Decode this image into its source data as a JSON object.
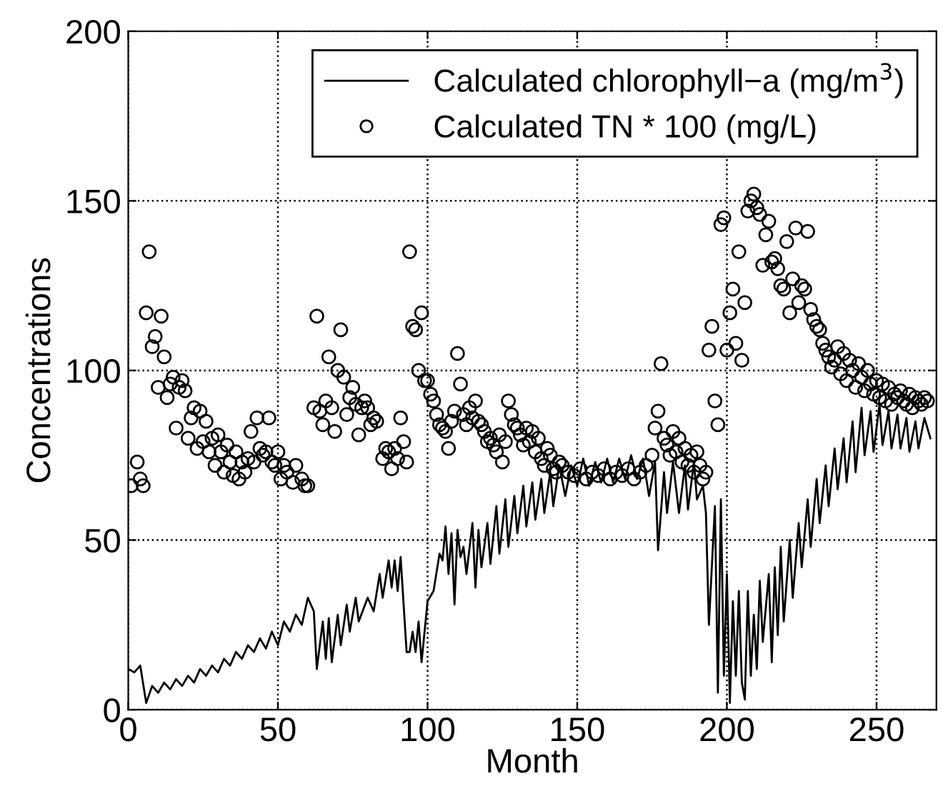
{
  "chart_data": {
    "type": "line",
    "xlabel": "Month",
    "ylabel": "Concentrations",
    "xlim": [
      0,
      270
    ],
    "ylim": [
      0,
      200
    ],
    "xticks": [
      0,
      50,
      100,
      150,
      200,
      250
    ],
    "yticks": [
      0,
      50,
      100,
      150,
      200
    ],
    "grid": true,
    "legend": "top right",
    "series": [
      {
        "name": "Calculated chlorophyll−a (mg/m$^{3}$)",
        "type": "line",
        "color": "#000000",
        "marker": "none",
        "line_style": "solid",
        "x": [
          0,
          2,
          4,
          6,
          8,
          10,
          12,
          14,
          16,
          18,
          20,
          22,
          24,
          26,
          28,
          30,
          32,
          34,
          36,
          38,
          40,
          42,
          44,
          46,
          48,
          50,
          52,
          54,
          56,
          58,
          60,
          62,
          63,
          65,
          66,
          67,
          68,
          70,
          71,
          73,
          74,
          76,
          77,
          80,
          82,
          84,
          85,
          87,
          88,
          89,
          90,
          91,
          93,
          94,
          95,
          96,
          97,
          98,
          100,
          102,
          104,
          105,
          106,
          107,
          108,
          109,
          110,
          111,
          112,
          113,
          115,
          116,
          117,
          118,
          120,
          121,
          123,
          124,
          126,
          127,
          129,
          130,
          132,
          133,
          135,
          136,
          138,
          139,
          141,
          142,
          144,
          146,
          148,
          150,
          152,
          154,
          156,
          158,
          160,
          162,
          164,
          166,
          168,
          170,
          172,
          174,
          176,
          177,
          179,
          180,
          182,
          184,
          186,
          187,
          189,
          190,
          192,
          193,
          194,
          196,
          197,
          198,
          199,
          200,
          201,
          202,
          203,
          204,
          205,
          206,
          207,
          208,
          209,
          210,
          211,
          212,
          214,
          215,
          216,
          217,
          218,
          219,
          221,
          222,
          224,
          225,
          227,
          228,
          230,
          231,
          233,
          234,
          236,
          237,
          239,
          240,
          242,
          243,
          245,
          246,
          248,
          249,
          251,
          252,
          254,
          255,
          257,
          258,
          260,
          261,
          263,
          264,
          266,
          268
        ],
        "values": [
          12,
          11,
          13,
          2,
          7,
          5,
          8,
          6,
          9,
          7,
          10,
          8,
          12,
          10,
          13,
          11,
          15,
          13,
          17,
          15,
          19,
          17,
          21,
          18,
          23,
          19,
          26,
          23,
          28,
          25,
          33,
          29,
          12,
          26,
          15,
          27,
          14,
          28,
          19,
          31,
          23,
          33,
          26,
          33,
          29,
          40,
          33,
          44,
          36,
          44,
          35,
          45,
          17,
          17,
          23,
          17,
          26,
          14,
          32,
          35,
          46,
          44,
          54,
          40,
          52,
          31,
          53,
          45,
          48,
          40,
          55,
          36,
          53,
          42,
          55,
          43,
          60,
          46,
          62,
          48,
          63,
          52,
          66,
          54,
          67,
          56,
          68,
          58,
          70,
          60,
          72,
          63,
          72,
          66,
          74,
          66,
          73,
          67,
          74,
          67,
          74,
          68,
          75,
          68,
          74,
          63,
          73,
          47,
          70,
          58,
          73,
          58,
          72,
          59,
          73,
          62,
          66,
          58,
          25,
          60,
          5,
          62,
          10,
          40,
          2,
          32,
          10,
          35,
          8,
          3,
          35,
          10,
          28,
          12,
          38,
          20,
          40,
          14,
          42,
          22,
          48,
          26,
          50,
          33,
          55,
          42,
          62,
          48,
          68,
          55,
          72,
          60,
          77,
          65,
          80,
          67,
          85,
          70,
          89,
          75,
          88,
          76,
          90,
          78,
          88,
          77,
          87,
          77,
          86,
          76,
          85,
          77,
          86,
          80
        ]
      },
      {
        "name": "Calculated TN * 100 (mg/L)",
        "type": "scatter",
        "color": "#000000",
        "marker": "circle",
        "x": [
          1,
          3,
          4,
          5,
          6,
          7,
          8,
          9,
          10,
          11,
          12,
          13,
          14,
          15,
          16,
          17,
          18,
          19,
          20,
          21,
          22,
          23,
          24,
          25,
          26,
          27,
          28,
          29,
          30,
          31,
          32,
          33,
          34,
          35,
          36,
          37,
          38,
          39,
          40,
          41,
          42,
          43,
          44,
          45,
          46,
          47,
          48,
          49,
          50,
          51,
          52,
          53,
          55,
          56,
          58,
          59,
          60,
          62,
          63,
          64,
          65,
          66,
          67,
          68,
          69,
          70,
          71,
          72,
          73,
          74,
          75,
          76,
          77,
          78,
          79,
          80,
          81,
          82,
          83,
          85,
          86,
          87,
          88,
          89,
          90,
          91,
          92,
          93,
          94,
          95,
          96,
          97,
          98,
          99,
          100,
          101,
          102,
          103,
          104,
          105,
          106,
          107,
          108,
          109,
          110,
          111,
          112,
          113,
          114,
          115,
          116,
          117,
          118,
          119,
          120,
          121,
          122,
          123,
          124,
          125,
          126,
          127,
          128,
          129,
          130,
          131,
          132,
          133,
          134,
          135,
          136,
          137,
          138,
          139,
          140,
          141,
          142,
          143,
          144,
          145,
          147,
          149,
          151,
          153,
          155,
          157,
          159,
          161,
          163,
          165,
          167,
          169,
          171,
          173,
          175,
          176,
          177,
          178,
          179,
          180,
          181,
          182,
          183,
          184,
          185,
          186,
          187,
          188,
          189,
          190,
          191,
          192,
          193,
          194,
          195,
          196,
          197,
          198,
          199,
          200,
          201,
          202,
          203,
          204,
          205,
          206,
          207,
          208,
          209,
          210,
          211,
          212,
          213,
          214,
          215,
          216,
          217,
          218,
          219,
          220,
          221,
          222,
          223,
          224,
          225,
          226,
          227,
          228,
          229,
          230,
          231,
          232,
          233,
          234,
          235,
          236,
          237,
          238,
          239,
          240,
          241,
          242,
          243,
          244,
          245,
          246,
          247,
          248,
          249,
          250,
          251,
          252,
          253,
          254,
          255,
          256,
          257,
          258,
          259,
          260,
          261,
          262,
          263,
          264,
          265,
          266,
          267
        ],
        "values": [
          66,
          73,
          68,
          66,
          117,
          135,
          107,
          110,
          95,
          116,
          104,
          92,
          96,
          98,
          83,
          95,
          97,
          94,
          80,
          86,
          89,
          77,
          88,
          79,
          85,
          76,
          80,
          72,
          81,
          76,
          70,
          78,
          73,
          69,
          76,
          68,
          73,
          70,
          74,
          82,
          73,
          86,
          77,
          75,
          76,
          86,
          73,
          72,
          76,
          68,
          72,
          70,
          67,
          72,
          68,
          66,
          66,
          89,
          116,
          88,
          84,
          91,
          104,
          89,
          82,
          100,
          112,
          98,
          87,
          92,
          95,
          90,
          81,
          89,
          91,
          89,
          84,
          86,
          85,
          74,
          77,
          76,
          71,
          77,
          74,
          86,
          79,
          73,
          135,
          113,
          112,
          100,
          117,
          97,
          97,
          93,
          91,
          87,
          84,
          83,
          82,
          77,
          85,
          88,
          105,
          96,
          87,
          84,
          89,
          86,
          91,
          85,
          84,
          82,
          79,
          80,
          78,
          76,
          81,
          73,
          79,
          91,
          87,
          84,
          83,
          81,
          78,
          83,
          79,
          82,
          76,
          80,
          74,
          72,
          77,
          75,
          71,
          70,
          73,
          72,
          70,
          69,
          71,
          68,
          70,
          69,
          71,
          68,
          70,
          69,
          71,
          68,
          70,
          72,
          75,
          83,
          88,
          102,
          80,
          78,
          75,
          82,
          76,
          80,
          73,
          77,
          72,
          75,
          70,
          76,
          72,
          68,
          70,
          106,
          113,
          91,
          84,
          143,
          145,
          106,
          117,
          124,
          108,
          135,
          103,
          120,
          147,
          150,
          152,
          148,
          146,
          131,
          140,
          144,
          132,
          133,
          130,
          125,
          124,
          138,
          117,
          127,
          142,
          120,
          125,
          124,
          141,
          118,
          115,
          113,
          112,
          108,
          106,
          104,
          101,
          103,
          107,
          99,
          105,
          97,
          103,
          100,
          95,
          102,
          98,
          94,
          100,
          96,
          93,
          97,
          92,
          96,
          91,
          95,
          90,
          93,
          92,
          94,
          91,
          90,
          93,
          89,
          92,
          91,
          90,
          92,
          91
        ]
      }
    ]
  }
}
